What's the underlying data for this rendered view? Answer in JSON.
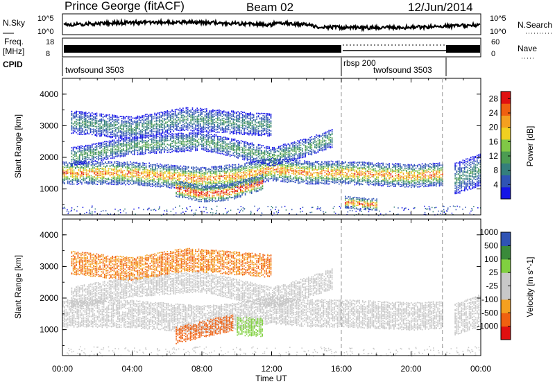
{
  "header": {
    "station": "Prince George (fitACF)",
    "beam": "Beam 02",
    "date": "12/Jun/2014"
  },
  "noise_panel": {
    "left_label": "N.Sky",
    "right_label": "N.Search",
    "y_ticks": [
      "10^5",
      "10^0"
    ]
  },
  "freq_panel": {
    "left_label_1": "Freq.",
    "left_label_2": "[MHz]",
    "right_label": "Nave",
    "left_ticks": [
      "18",
      "8"
    ],
    "right_ticks": [
      "60",
      "0"
    ]
  },
  "cpid_panel": {
    "label": "CPID",
    "programs": [
      "twofsound 3503",
      "rbsp 200",
      "twofsound 3503"
    ]
  },
  "colors": {
    "power": [
      "#1414e6",
      "#2f53b4",
      "#347f7c",
      "#4c9c52",
      "#80c846",
      "#f0d020",
      "#f4a020",
      "#f06010",
      "#e01010"
    ],
    "velocity": [
      "#e01010",
      "#f06010",
      "#f4a020",
      "#c8c8c8",
      "#c8c8c8",
      "#80d040",
      "#3a8a3a",
      "#2f53b4",
      "#1414e6"
    ]
  },
  "chart_data": [
    {
      "type": "heatmap",
      "title": "Power [dB]",
      "ylabel": "Slant Range [km]",
      "xlabel": "Time UT",
      "x_ticks": [
        "00:00",
        "04:00",
        "08:00",
        "12:00",
        "16:00",
        "20:00",
        "00:00"
      ],
      "xlim_hours": [
        0,
        24
      ],
      "ylim_km": [
        180,
        4500
      ],
      "y_ticks": [
        1000,
        2000,
        3000,
        4000
      ],
      "colorbar": {
        "label": "Power [dB]",
        "ticks": [
          4,
          8,
          12,
          16,
          20,
          24,
          28
        ],
        "range": [
          0,
          30
        ]
      },
      "mode_change_hours": [
        16,
        21.8
      ],
      "bands": [
        {
          "name": "main",
          "t_start": 0,
          "t_end": 21.8,
          "center_km": [
            [
              0,
              1500
            ],
            [
              4,
              1480
            ],
            [
              8,
              1300
            ],
            [
              10,
              1400
            ],
            [
              12,
              1600
            ],
            [
              14,
              1500
            ],
            [
              16,
              1500
            ],
            [
              20,
              1400
            ],
            [
              21.8,
              1450
            ]
          ],
          "width_km": 380,
          "peak_db": 22
        },
        {
          "name": "lower",
          "t_start": 6.5,
          "t_end": 11.5,
          "center_km": [
            [
              6.5,
              1000
            ],
            [
              8,
              820
            ],
            [
              9.5,
              880
            ],
            [
              11.5,
              1200
            ]
          ],
          "width_km": 260,
          "peak_db": 28
        },
        {
          "name": "upper",
          "t_start": 0.5,
          "t_end": 15.5,
          "center_km": [
            [
              0.5,
              2000
            ],
            [
              4,
              2350
            ],
            [
              8,
              2500
            ],
            [
              12,
              2000
            ],
            [
              14,
              2300
            ],
            [
              15.5,
              2600
            ]
          ],
          "width_km": 300,
          "peak_db": 10
        },
        {
          "name": "far",
          "t_start": 0.5,
          "t_end": 12,
          "center_km": [
            [
              0.5,
              3100
            ],
            [
              4,
              2900
            ],
            [
              7,
              3200
            ],
            [
              12,
              3000
            ]
          ],
          "width_km": 350,
          "peak_db": 8
        },
        {
          "name": "near",
          "t_start": 16.2,
          "t_end": 18,
          "center_km": [
            [
              16.2,
              560
            ],
            [
              18,
              480
            ]
          ],
          "width_km": 180,
          "peak_db": 24
        },
        {
          "name": "late",
          "t_start": 22.5,
          "t_end": 24,
          "center_km": [
            [
              22.5,
              1300
            ],
            [
              24,
              1600
            ]
          ],
          "width_km": 500,
          "peak_db": 8
        }
      ]
    },
    {
      "type": "heatmap",
      "title": "Velocity [m s^-1]",
      "ylabel": "Slant Range [km]",
      "xlabel": "Time UT",
      "x_ticks": [
        "00:00",
        "04:00",
        "08:00",
        "12:00",
        "16:00",
        "20:00",
        "00:00"
      ],
      "xlim_hours": [
        0,
        24
      ],
      "ylim_km": [
        180,
        4500
      ],
      "y_ticks": [
        1000,
        2000,
        3000,
        4000
      ],
      "colorbar": {
        "label": "Velocity [m s^-1]",
        "ticks": [
          -1000,
          -500,
          -100,
          -25,
          25,
          100,
          500,
          1000
        ]
      },
      "mode_change_hours": [
        16,
        21.8
      ],
      "patches": [
        {
          "name": "main",
          "t_start": 0,
          "t_end": 21.8,
          "center_km": [
            [
              0,
              1500
            ],
            [
              4,
              1480
            ],
            [
              8,
              1300
            ],
            [
              10,
              1400
            ],
            [
              12,
              1600
            ],
            [
              14,
              1500
            ],
            [
              16,
              1500
            ],
            [
              20,
              1400
            ],
            [
              21.8,
              1450
            ]
          ],
          "width_km": 420,
          "velocity": 0
        },
        {
          "name": "upper",
          "t_start": 0.5,
          "t_end": 15.5,
          "center_km": [
            [
              0.5,
              2000
            ],
            [
              4,
              2350
            ],
            [
              8,
              2500
            ],
            [
              12,
              2000
            ],
            [
              14,
              2300
            ],
            [
              15.5,
              2600
            ]
          ],
          "width_km": 320,
          "velocity": 0
        },
        {
          "name": "far",
          "t_start": 0.5,
          "t_end": 12,
          "center_km": [
            [
              0.5,
              3100
            ],
            [
              4,
              2900
            ],
            [
              7,
              3200
            ],
            [
              12,
              3000
            ]
          ],
          "width_km": 350,
          "velocity": -150
        },
        {
          "name": "orange",
          "t_start": 6.5,
          "t_end": 9.8,
          "center_km": [
            [
              6.5,
              800
            ],
            [
              8,
              1000
            ],
            [
              9.8,
              1200
            ]
          ],
          "width_km": 260,
          "velocity": -200
        },
        {
          "name": "green",
          "t_start": 10,
          "t_end": 11.5,
          "center_km": [
            [
              10,
              1100
            ],
            [
              11.5,
              1050
            ]
          ],
          "width_km": 280,
          "velocity": 120
        },
        {
          "name": "late",
          "t_start": 22.5,
          "t_end": 24,
          "center_km": [
            [
              22.5,
              1300
            ],
            [
              24,
              1600
            ]
          ],
          "width_km": 500,
          "velocity": -20
        }
      ]
    }
  ]
}
